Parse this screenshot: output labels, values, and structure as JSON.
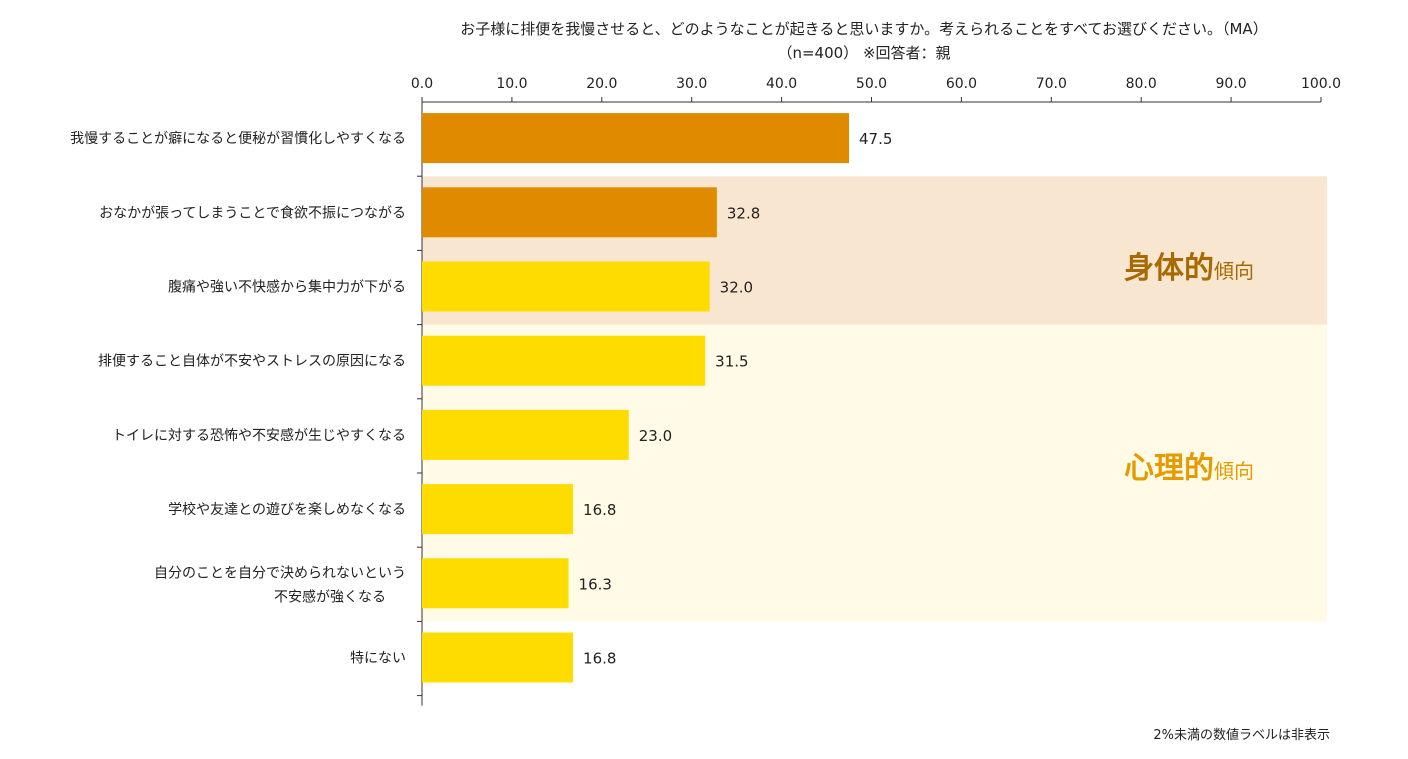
{
  "chart_data": {
    "type": "bar",
    "orientation": "horizontal",
    "title": "お子様に排便を我慢させると、どのようなことが起きると思いますか。考えられることをすべてお選びください。（MA）",
    "subtitle": "（n=400）  ※回答者：親",
    "xlim": [
      0,
      100
    ],
    "ticks": [
      "0.0",
      "10.0",
      "20.0",
      "30.0",
      "40.0",
      "50.0",
      "60.0",
      "70.0",
      "80.0",
      "90.0",
      "100.0"
    ],
    "categories": [
      "我慢することが癖になると便秘が習慣化しやすくなる",
      "おなかが張ってしまうことで食欲不振につながる",
      "腹痛や強い不快感から集中力が下がる",
      "排便すること自体が不安やストレスの原因になる",
      "トイレに対する恐怖や不安感が生じやすくなる",
      "学校や友達との遊びを楽しめなくなる",
      "自分のことを自分で決められないという\n不安感が強くなる",
      "特にない"
    ],
    "values": [
      47.5,
      32.8,
      32.0,
      31.5,
      23.0,
      16.8,
      16.3,
      16.8
    ],
    "value_labels": [
      "47.5",
      "32.8",
      "32.0",
      "31.5",
      "23.0",
      "16.8",
      "16.3",
      "16.8"
    ],
    "bar_colors": [
      "#e08a00",
      "#e08a00",
      "#ffdc00",
      "#ffdc00",
      "#ffdc00",
      "#ffdc00",
      "#ffdc00",
      "#ffdc00"
    ],
    "groups": [
      {
        "main": "身体的",
        "sub": "傾向",
        "from": 1,
        "to": 2,
        "bg": "#f9e6d0",
        "color": "#a86a00"
      },
      {
        "main": "心理的",
        "sub": "傾向",
        "from": 3,
        "to": 6,
        "bg": "#fffbe6",
        "color": "#e59b00"
      }
    ],
    "grid": false,
    "note": "2%未満の数値ラベルは非表示"
  }
}
